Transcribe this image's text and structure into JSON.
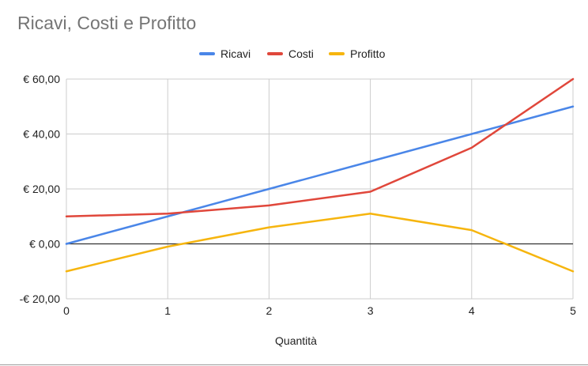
{
  "chart_data": {
    "type": "line",
    "title": "Ricavi, Costi e Profitto",
    "xlabel": "Quantità",
    "ylabel": "",
    "x": [
      0,
      1,
      2,
      3,
      4,
      5
    ],
    "xlim": [
      0,
      5
    ],
    "ylim": [
      -20,
      60
    ],
    "yticks": [
      -20,
      0,
      20,
      40,
      60
    ],
    "ytick_labels": [
      "-€ 20,00",
      "€ 0,00",
      "€ 20,00",
      "€ 40,00",
      "€ 60,00"
    ],
    "xticks": [
      0,
      1,
      2,
      3,
      4,
      5
    ],
    "xtick_labels": [
      "0",
      "1",
      "2",
      "3",
      "4",
      "5"
    ],
    "grid": true,
    "legend_position": "top",
    "series": [
      {
        "name": "Ricavi",
        "color": "#4a86e8",
        "values": [
          0,
          10,
          20,
          30,
          40,
          50
        ]
      },
      {
        "name": "Costi",
        "color": "#e0473b",
        "values": [
          10,
          11,
          14,
          19,
          35,
          60
        ]
      },
      {
        "name": "Profitto",
        "color": "#f6b50e",
        "values": [
          -10,
          -1,
          6,
          11,
          5,
          -10
        ]
      }
    ]
  }
}
